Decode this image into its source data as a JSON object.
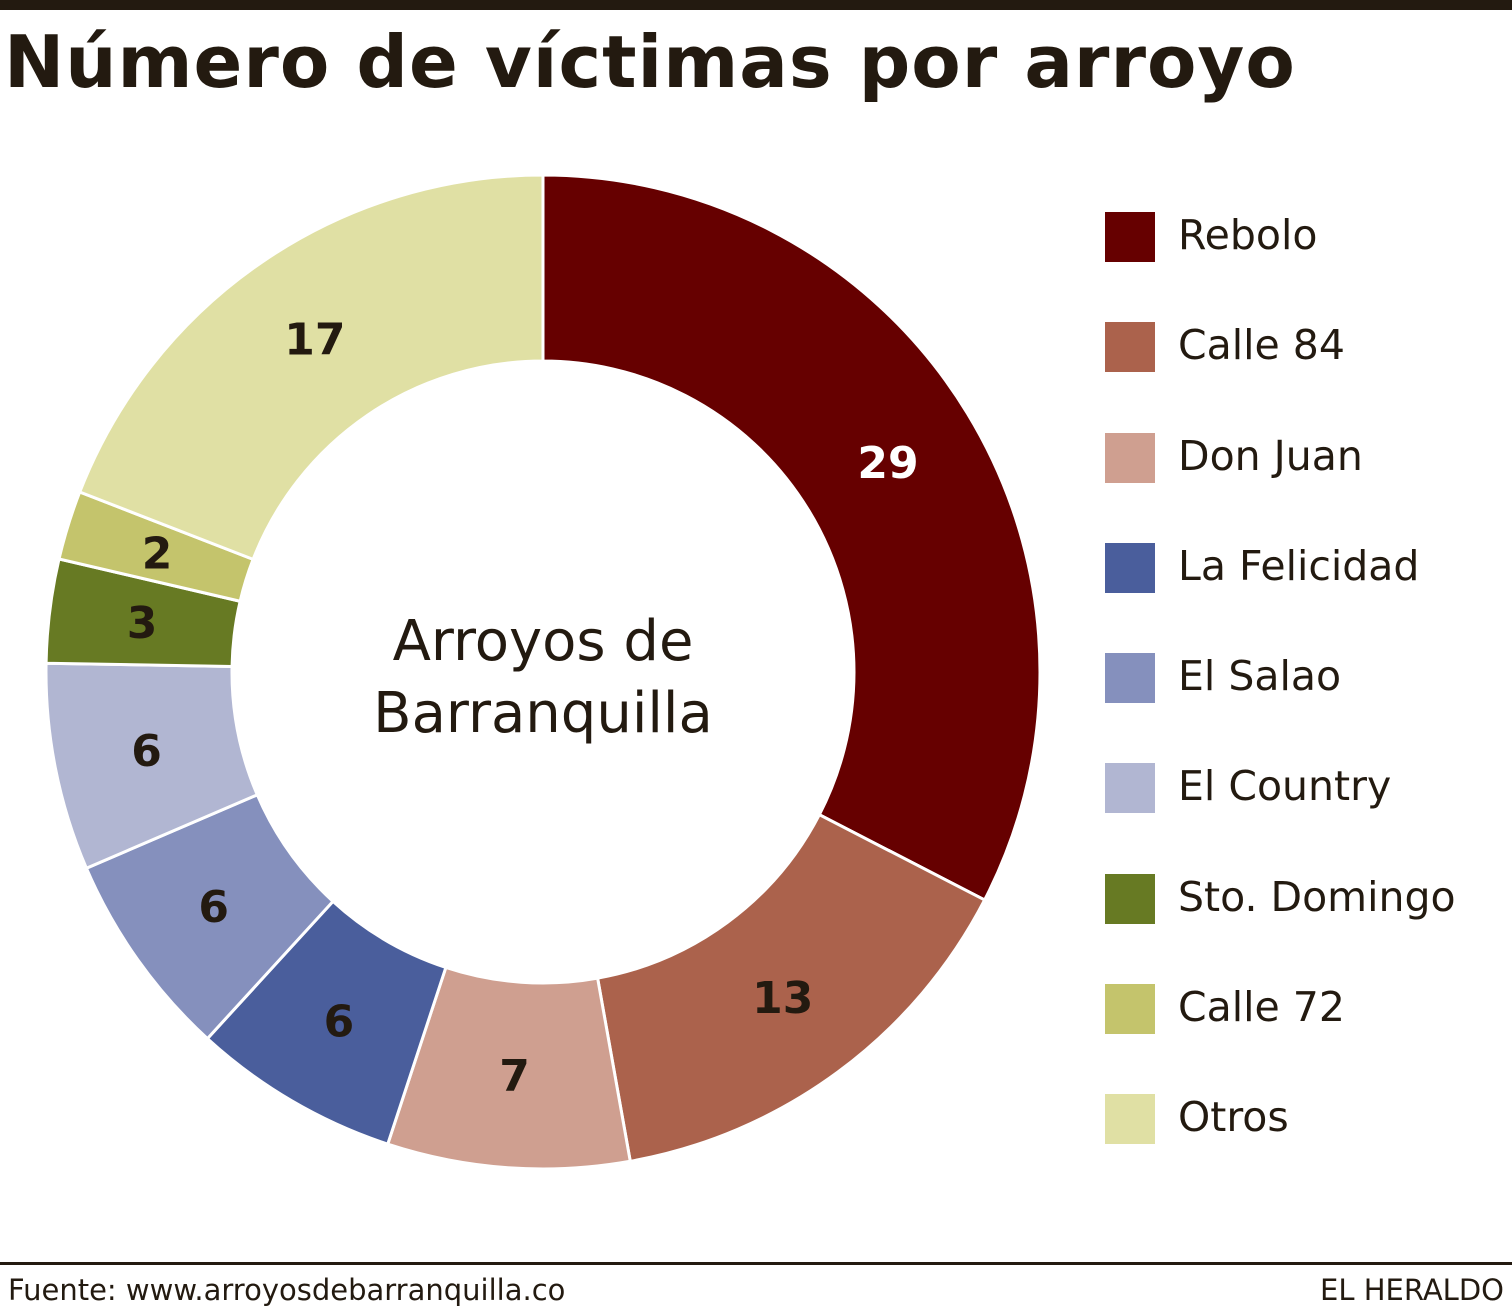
{
  "title": "Número de víctimas por arroyo",
  "footer": {
    "source": "Fuente: www.arroyosdebarranquilla.co",
    "credit": "EL HERALDO"
  },
  "chart_data": {
    "type": "pie",
    "title": "Número de víctimas por arroyo",
    "center_label": [
      "Arroyos de",
      "Barranquilla"
    ],
    "categories": [
      "Rebolo",
      "Calle 84",
      "Don Juan",
      "La Felicidad",
      "El Salao",
      "El Country",
      "Sto. Domingo",
      "Calle 72",
      "Otros"
    ],
    "values": [
      29,
      13,
      7,
      6,
      6,
      6,
      3,
      2,
      17
    ],
    "colors": [
      "#660000",
      "#ab624c",
      "#cf9f90",
      "#4a5e9c",
      "#8590bd",
      "#b1b6d2",
      "#677a23",
      "#c4c46c",
      "#e0e0a4"
    ],
    "label_colors": [
      "#ffffff",
      "#231a10",
      "#231a10",
      "#231a10",
      "#231a10",
      "#231a10",
      "#231a10",
      "#231a10",
      "#231a10"
    ],
    "legend_position": "right"
  }
}
